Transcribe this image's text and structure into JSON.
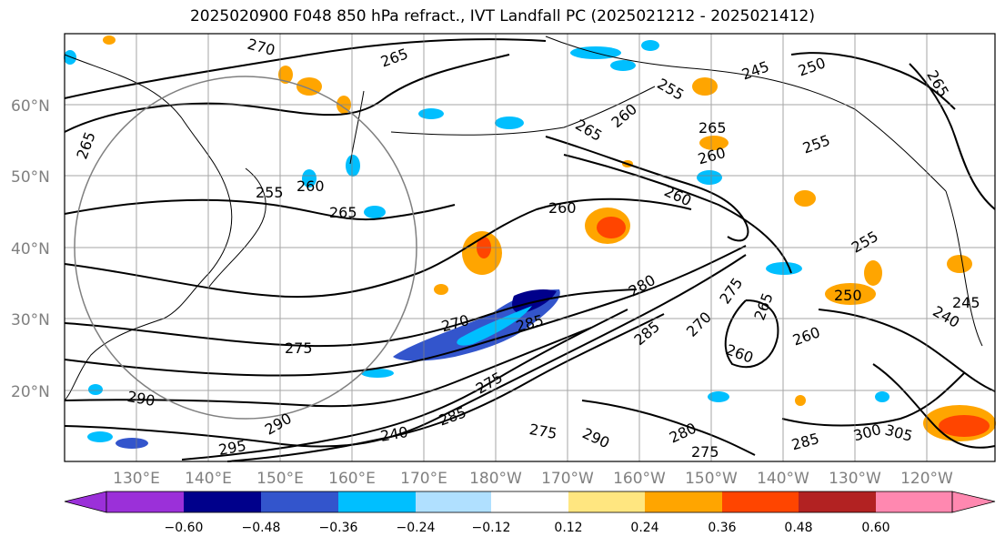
{
  "title": "2025020900 F048 850 hPa refract., IVT Landfall PC (2025021212 - 2025021412)",
  "map": {
    "lon_labels": [
      "130°E",
      "140°E",
      "150°E",
      "160°E",
      "170°E",
      "180°W",
      "170°W",
      "160°W",
      "150°W",
      "140°W",
      "130°W",
      "120°W"
    ],
    "lat_labels": [
      "60°N",
      "50°N",
      "40°N",
      "30°N",
      "20°N"
    ],
    "grid_color": "#808080",
    "contour_labels": [
      "270",
      "265",
      "245",
      "250",
      "255",
      "265",
      "265",
      "265",
      "260",
      "260",
      "255",
      "260",
      "265",
      "260",
      "260",
      "255",
      "265",
      "270",
      "285",
      "280",
      "275",
      "265",
      "260",
      "260",
      "250",
      "255",
      "240",
      "245",
      "275",
      "290",
      "290",
      "295",
      "240",
      "285",
      "275",
      "290",
      "280",
      "275",
      "285",
      "300",
      "305",
      "275",
      "285",
      "270"
    ]
  },
  "colorbar": {
    "colors": [
      "#9b30d9",
      "#00008b",
      "#3355cc",
      "#00bfff",
      "#b0e0ff",
      "#ffffff",
      "#ffe680",
      "#ffa500",
      "#ff4500",
      "#b22222",
      "#ff88b0"
    ],
    "tick_labels": [
      "−0.60",
      "−0.48",
      "−0.36",
      "−0.24",
      "−0.12",
      "0.12",
      "0.24",
      "0.36",
      "0.48",
      "0.60"
    ]
  }
}
